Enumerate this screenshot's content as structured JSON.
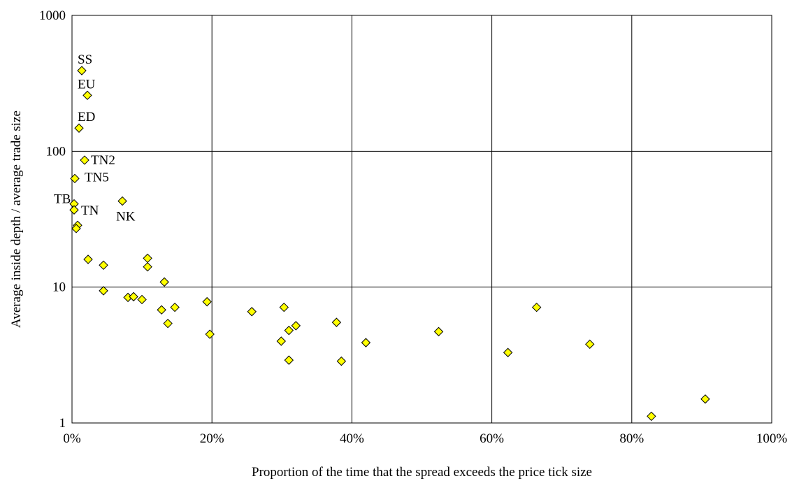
{
  "chart_data": {
    "type": "scatter",
    "title": "",
    "xlabel": "Proportion of the time that the spread exceeds the price tick size",
    "ylabel": "Average inside depth / average trade size",
    "x_scale": "linear",
    "y_scale": "log",
    "xlim": [
      0,
      1
    ],
    "ylim": [
      1,
      1000
    ],
    "x_ticks": [
      0,
      0.2,
      0.4,
      0.6,
      0.8,
      1.0
    ],
    "x_tick_labels": [
      "0%",
      "20%",
      "40%",
      "60%",
      "80%",
      "100%"
    ],
    "y_ticks": [
      1,
      10,
      100,
      1000
    ],
    "y_tick_labels": [
      "1",
      "10",
      "100",
      "1000"
    ],
    "grid": true,
    "legend": "none",
    "marker": "diamond",
    "marker_color": "#FFFF00",
    "marker_edge_color": "#000000",
    "points": [
      {
        "x": 0.014,
        "y": 392,
        "label": "SS"
      },
      {
        "x": 0.022,
        "y": 258,
        "label": "EU"
      },
      {
        "x": 0.01,
        "y": 148,
        "label": "ED"
      },
      {
        "x": 0.018,
        "y": 86,
        "label": "TN2"
      },
      {
        "x": 0.004,
        "y": 63,
        "label": "TN5"
      },
      {
        "x": 0.072,
        "y": 43,
        "label": "NK"
      },
      {
        "x": 0.003,
        "y": 41,
        "label": "TB"
      },
      {
        "x": 0.003,
        "y": 37,
        "label": "TN"
      },
      {
        "x": 0.008,
        "y": 28.5,
        "label": ""
      },
      {
        "x": 0.006,
        "y": 27,
        "label": ""
      },
      {
        "x": 0.023,
        "y": 16,
        "label": ""
      },
      {
        "x": 0.045,
        "y": 14.5,
        "label": ""
      },
      {
        "x": 0.045,
        "y": 9.4,
        "label": ""
      },
      {
        "x": 0.108,
        "y": 16.3,
        "label": ""
      },
      {
        "x": 0.108,
        "y": 14.1,
        "label": ""
      },
      {
        "x": 0.132,
        "y": 10.9,
        "label": ""
      },
      {
        "x": 0.08,
        "y": 8.4,
        "label": ""
      },
      {
        "x": 0.088,
        "y": 8.5,
        "label": ""
      },
      {
        "x": 0.1,
        "y": 8.1,
        "label": ""
      },
      {
        "x": 0.128,
        "y": 6.8,
        "label": ""
      },
      {
        "x": 0.147,
        "y": 7.1,
        "label": ""
      },
      {
        "x": 0.137,
        "y": 5.4,
        "label": ""
      },
      {
        "x": 0.193,
        "y": 7.8,
        "label": ""
      },
      {
        "x": 0.197,
        "y": 4.5,
        "label": ""
      },
      {
        "x": 0.257,
        "y": 6.6,
        "label": ""
      },
      {
        "x": 0.303,
        "y": 7.1,
        "label": ""
      },
      {
        "x": 0.31,
        "y": 4.8,
        "label": ""
      },
      {
        "x": 0.32,
        "y": 5.2,
        "label": ""
      },
      {
        "x": 0.299,
        "y": 4.0,
        "label": ""
      },
      {
        "x": 0.31,
        "y": 2.9,
        "label": ""
      },
      {
        "x": 0.378,
        "y": 5.5,
        "label": ""
      },
      {
        "x": 0.385,
        "y": 2.85,
        "label": ""
      },
      {
        "x": 0.42,
        "y": 3.9,
        "label": ""
      },
      {
        "x": 0.524,
        "y": 4.7,
        "label": ""
      },
      {
        "x": 0.623,
        "y": 3.3,
        "label": ""
      },
      {
        "x": 0.664,
        "y": 7.1,
        "label": ""
      },
      {
        "x": 0.74,
        "y": 3.8,
        "label": ""
      },
      {
        "x": 0.828,
        "y": 1.12,
        "label": ""
      },
      {
        "x": 0.905,
        "y": 1.5,
        "label": ""
      }
    ]
  }
}
